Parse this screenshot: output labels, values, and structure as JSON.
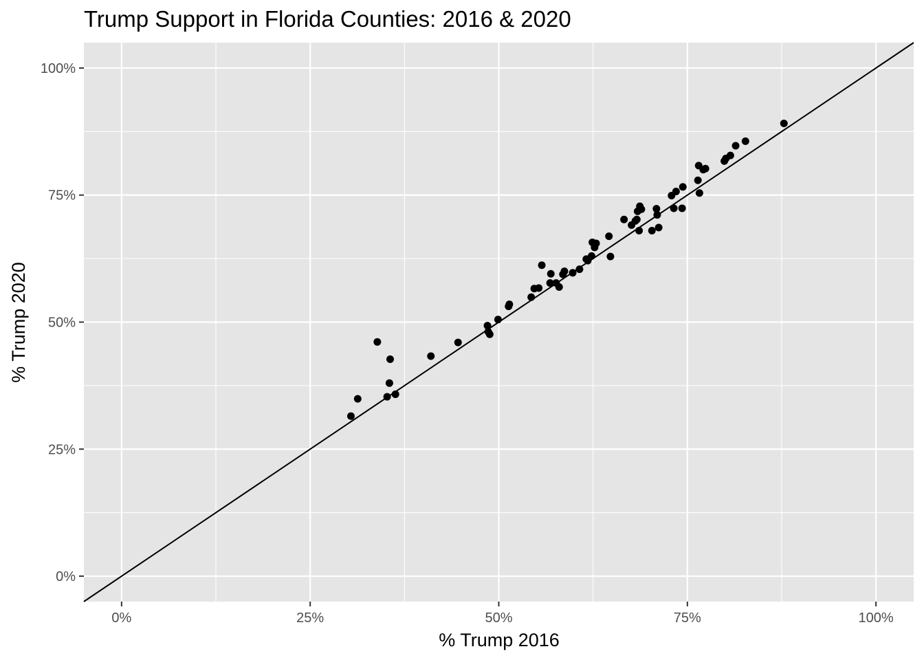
{
  "chart_data": {
    "type": "scatter",
    "title": "Trump Support in Florida Counties: 2016 & 2020",
    "xlabel": "% Trump 2016",
    "ylabel": "% Trump 2020",
    "xlim": [
      -0.05,
      1.05
    ],
    "ylim": [
      -0.05,
      1.05
    ],
    "x_ticks": [
      0,
      0.25,
      0.5,
      0.75,
      1.0
    ],
    "x_tick_labels": [
      "0%",
      "25%",
      "50%",
      "75%",
      "100%"
    ],
    "y_ticks": [
      0,
      0.25,
      0.5,
      0.75,
      1.0
    ],
    "y_tick_labels": [
      "0%",
      "25%",
      "50%",
      "75%",
      "100%"
    ],
    "grid": true,
    "panel_background": "#e5e5e5",
    "grid_color": "#ffffff",
    "point_color": "#000000",
    "reference_line": {
      "type": "y=x",
      "color": "#000000"
    },
    "points": [
      {
        "x": 0.304,
        "y": 0.315
      },
      {
        "x": 0.313,
        "y": 0.349
      },
      {
        "x": 0.339,
        "y": 0.461
      },
      {
        "x": 0.352,
        "y": 0.353
      },
      {
        "x": 0.355,
        "y": 0.38
      },
      {
        "x": 0.356,
        "y": 0.427
      },
      {
        "x": 0.363,
        "y": 0.358
      },
      {
        "x": 0.41,
        "y": 0.433
      },
      {
        "x": 0.446,
        "y": 0.46
      },
      {
        "x": 0.485,
        "y": 0.493
      },
      {
        "x": 0.486,
        "y": 0.481
      },
      {
        "x": 0.488,
        "y": 0.476
      },
      {
        "x": 0.499,
        "y": 0.505
      },
      {
        "x": 0.513,
        "y": 0.531
      },
      {
        "x": 0.514,
        "y": 0.535
      },
      {
        "x": 0.543,
        "y": 0.549
      },
      {
        "x": 0.547,
        "y": 0.566
      },
      {
        "x": 0.553,
        "y": 0.567
      },
      {
        "x": 0.557,
        "y": 0.612
      },
      {
        "x": 0.568,
        "y": 0.577
      },
      {
        "x": 0.569,
        "y": 0.595
      },
      {
        "x": 0.576,
        "y": 0.577
      },
      {
        "x": 0.58,
        "y": 0.569
      },
      {
        "x": 0.585,
        "y": 0.594
      },
      {
        "x": 0.587,
        "y": 0.6
      },
      {
        "x": 0.598,
        "y": 0.597
      },
      {
        "x": 0.607,
        "y": 0.604
      },
      {
        "x": 0.616,
        "y": 0.624
      },
      {
        "x": 0.618,
        "y": 0.621
      },
      {
        "x": 0.623,
        "y": 0.63
      },
      {
        "x": 0.624,
        "y": 0.657
      },
      {
        "x": 0.627,
        "y": 0.647
      },
      {
        "x": 0.629,
        "y": 0.655
      },
      {
        "x": 0.646,
        "y": 0.669
      },
      {
        "x": 0.648,
        "y": 0.629
      },
      {
        "x": 0.666,
        "y": 0.702
      },
      {
        "x": 0.676,
        "y": 0.691
      },
      {
        "x": 0.681,
        "y": 0.699
      },
      {
        "x": 0.683,
        "y": 0.702
      },
      {
        "x": 0.684,
        "y": 0.718
      },
      {
        "x": 0.686,
        "y": 0.68
      },
      {
        "x": 0.687,
        "y": 0.728
      },
      {
        "x": 0.689,
        "y": 0.722
      },
      {
        "x": 0.703,
        "y": 0.68
      },
      {
        "x": 0.709,
        "y": 0.723
      },
      {
        "x": 0.71,
        "y": 0.711
      },
      {
        "x": 0.712,
        "y": 0.686
      },
      {
        "x": 0.729,
        "y": 0.749
      },
      {
        "x": 0.732,
        "y": 0.724
      },
      {
        "x": 0.735,
        "y": 0.757
      },
      {
        "x": 0.743,
        "y": 0.724
      },
      {
        "x": 0.744,
        "y": 0.766
      },
      {
        "x": 0.764,
        "y": 0.779
      },
      {
        "x": 0.765,
        "y": 0.808
      },
      {
        "x": 0.766,
        "y": 0.754
      },
      {
        "x": 0.771,
        "y": 0.8
      },
      {
        "x": 0.774,
        "y": 0.802
      },
      {
        "x": 0.799,
        "y": 0.817
      },
      {
        "x": 0.801,
        "y": 0.822
      },
      {
        "x": 0.807,
        "y": 0.828
      },
      {
        "x": 0.814,
        "y": 0.847
      },
      {
        "x": 0.827,
        "y": 0.856
      },
      {
        "x": 0.878,
        "y": 0.891
      }
    ]
  }
}
